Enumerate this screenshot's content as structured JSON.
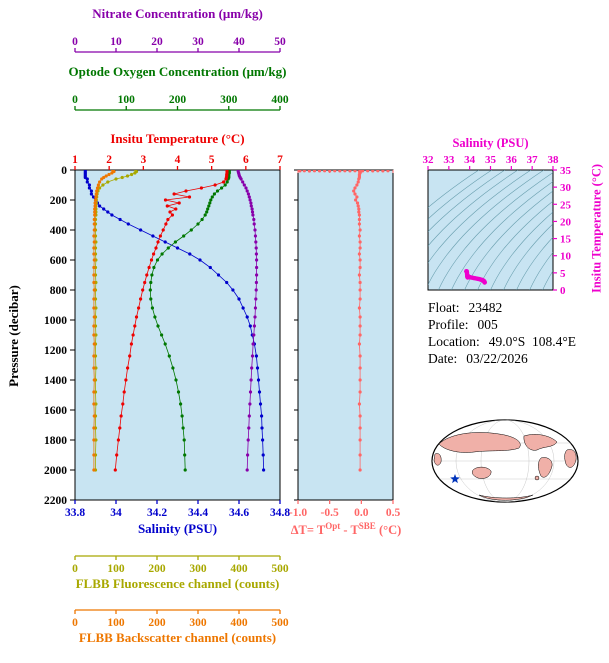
{
  "colors": {
    "plot_bg": "#c8e4f2",
    "contour": "#4a8898",
    "land": "#f0b0a8",
    "ocean": "#ffffff",
    "star": "#0033bb",
    "pressure_axis": "#000000"
  },
  "info": {
    "lines": [
      {
        "label": "Float:",
        "value": "23482"
      },
      {
        "label": "Profile:",
        "value": "005"
      },
      {
        "label": "Location:",
        "value": "49.0°S  108.4°E"
      },
      {
        "label": "Date:",
        "value": "03/22/2026"
      }
    ]
  },
  "chart_data": [
    {
      "type": "line",
      "title": "",
      "y_axis": {
        "label": "Pressure (decibar)",
        "range": [
          0,
          2200
        ],
        "ticks": [
          "0",
          "200",
          "400",
          "600",
          "800",
          "1000",
          "1200",
          "1400",
          "1600",
          "1800",
          "2000",
          "2200"
        ]
      },
      "x_axes": {
        "nitrate": {
          "label": "Nitrate Concentration (μm/kg)",
          "range": [
            0,
            50
          ],
          "ticks": [
            "0",
            "10",
            "20",
            "30",
            "40",
            "50"
          ],
          "color": "#8800aa"
        },
        "oxygen": {
          "label": "Optode Oxygen Concentration (μm/kg)",
          "range": [
            0,
            400
          ],
          "ticks": [
            "0",
            "100",
            "200",
            "300",
            "400"
          ],
          "color": "#007700"
        },
        "temperature": {
          "label": "Insitu Temperature (°C)",
          "range": [
            1,
            7
          ],
          "ticks": [
            "1",
            "2",
            "3",
            "4",
            "5",
            "6",
            "7"
          ],
          "color": "#ee0000"
        },
        "salinity": {
          "label": "Salinity (PSU)",
          "range": [
            33.8,
            34.8
          ],
          "ticks": [
            "33.8",
            "34",
            "34.2",
            "34.4",
            "34.6",
            "34.8"
          ],
          "color": "#0000cc"
        },
        "fluorescence": {
          "label": "FLBB Fluorescence channel (counts)",
          "range": [
            0,
            500
          ],
          "ticks": [
            "0",
            "100",
            "200",
            "300",
            "400",
            "500"
          ],
          "color": "#a8a800"
        },
        "backscatter": {
          "label": "FLBB Backscatter channel (counts)",
          "range": [
            0,
            500
          ],
          "ticks": [
            "0",
            "100",
            "200",
            "300",
            "400",
            "500"
          ],
          "color": "#ee7700"
        }
      },
      "pressure": [
        0,
        10,
        20,
        30,
        40,
        50,
        60,
        80,
        100,
        120,
        140,
        160,
        180,
        200,
        220,
        240,
        260,
        280,
        300,
        330,
        360,
        400,
        440,
        480,
        520,
        560,
        600,
        650,
        700,
        750,
        800,
        860,
        920,
        980,
        1040,
        1100,
        1160,
        1240,
        1320,
        1400,
        1480,
        1560,
        1640,
        1720,
        1800,
        1900,
        2000
      ],
      "series": {
        "temperature": [
          5.45,
          5.45,
          5.45,
          5.44,
          5.44,
          5.43,
          5.42,
          5.35,
          5.1,
          4.7,
          4.25,
          3.9,
          4.35,
          3.65,
          4.05,
          3.7,
          3.95,
          3.78,
          3.85,
          3.72,
          3.66,
          3.58,
          3.5,
          3.43,
          3.37,
          3.3,
          3.24,
          3.17,
          3.1,
          3.04,
          2.98,
          2.92,
          2.86,
          2.8,
          2.75,
          2.7,
          2.65,
          2.6,
          2.54,
          2.49,
          2.44,
          2.4,
          2.35,
          2.31,
          2.27,
          2.22,
          2.18
        ],
        "oxygen": [
          301,
          301,
          301,
          300,
          300,
          300,
          299,
          297,
          293,
          286,
          278,
          272,
          268,
          265,
          263,
          261,
          259,
          257,
          254,
          248,
          240,
          227,
          212,
          196,
          182,
          170,
          161,
          154,
          150,
          148,
          147,
          148,
          151,
          156,
          162,
          169,
          176,
          184,
          191,
          197,
          202,
          206,
          209,
          211,
          213,
          214,
          215
        ],
        "nitrate": [
          39.8,
          39.8,
          39.9,
          40.0,
          40.1,
          40.3,
          40.5,
          40.9,
          41.3,
          41.7,
          42.0,
          42.3,
          42.5,
          42.7,
          42.9,
          43.0,
          43.2,
          43.3,
          43.4,
          43.6,
          43.7,
          43.9,
          44.0,
          44.1,
          44.2,
          44.25,
          44.3,
          44.3,
          44.3,
          44.25,
          44.2,
          44.1,
          44.0,
          43.9,
          43.75,
          43.6,
          43.45,
          43.3,
          43.1,
          42.95,
          42.8,
          42.65,
          42.5,
          42.4,
          42.25,
          42.1,
          42.0
        ],
        "salinity": [
          33.85,
          33.85,
          33.85,
          33.85,
          33.85,
          33.85,
          33.86,
          33.86,
          33.87,
          33.87,
          33.88,
          33.88,
          33.89,
          33.9,
          33.91,
          33.92,
          33.94,
          33.96,
          33.98,
          34.02,
          34.06,
          34.12,
          34.18,
          34.24,
          34.3,
          34.36,
          34.41,
          34.46,
          34.5,
          34.54,
          34.57,
          34.6,
          34.62,
          34.64,
          34.655,
          34.665,
          34.675,
          34.685,
          34.69,
          34.695,
          34.7,
          34.705,
          34.71,
          34.712,
          34.715,
          34.718,
          34.72
        ],
        "fluorescence": [
          148,
          150,
          146,
          138,
          128,
          115,
          100,
          80,
          68,
          60,
          56,
          54,
          53,
          52,
          52,
          51,
          51,
          51,
          51,
          50,
          50,
          50,
          50,
          51,
          50,
          50,
          51,
          50,
          50,
          51,
          50,
          50,
          51,
          50,
          50,
          51,
          50,
          50,
          51,
          50,
          50,
          51,
          50,
          50,
          51,
          50,
          50
        ],
        "backscatter": [
          92,
          95,
          90,
          83,
          76,
          70,
          65,
          60,
          57,
          55,
          53,
          52,
          51,
          50,
          49,
          49,
          48,
          48,
          48,
          47,
          47,
          47,
          46,
          47,
          46,
          46,
          47,
          46,
          46,
          46,
          47,
          46,
          46,
          47,
          46,
          46,
          47,
          46,
          46,
          47,
          46,
          46,
          47,
          46,
          46,
          46,
          46
        ]
      }
    },
    {
      "type": "line",
      "x_axis": {
        "label_parts": [
          "ΔT= T",
          "Opt",
          " - T",
          "SBE",
          " (°C)"
        ],
        "range": [
          -1,
          0.5
        ],
        "ticks": [
          "-1.0",
          "-0.5",
          "0.0",
          "0.5"
        ],
        "color": "#ff6666"
      },
      "values": [
        -0.02,
        -0.03,
        -0.02,
        -0.03,
        -0.03,
        -0.03,
        -0.04,
        -0.05,
        -0.07,
        -0.1,
        -0.12,
        -0.1,
        -0.07,
        -0.09,
        -0.06,
        -0.05,
        -0.04,
        -0.04,
        -0.03,
        -0.03,
        -0.03,
        -0.02,
        -0.03,
        -0.02,
        -0.02,
        -0.03,
        -0.02,
        -0.02,
        -0.03,
        -0.02,
        -0.02,
        -0.02,
        -0.03,
        -0.02,
        -0.02,
        -0.02,
        -0.03,
        -0.02,
        -0.02,
        -0.02,
        -0.02,
        -0.03,
        -0.02,
        -0.02,
        -0.02,
        -0.02,
        -0.02
      ],
      "surface_scatter": [
        [
          -0.97,
          6
        ],
        [
          -0.9,
          5
        ],
        [
          -0.82,
          7
        ],
        [
          -0.74,
          5
        ],
        [
          -0.66,
          6
        ],
        [
          -0.58,
          5
        ],
        [
          -0.5,
          7
        ],
        [
          -0.42,
          5
        ],
        [
          -0.34,
          6
        ],
        [
          -0.26,
          5
        ],
        [
          -0.18,
          6
        ],
        [
          -0.1,
          5
        ],
        [
          0.02,
          6
        ],
        [
          0.1,
          5
        ],
        [
          0.18,
          6
        ],
        [
          0.26,
          5
        ],
        [
          0.34,
          6
        ],
        [
          0.42,
          5
        ]
      ]
    },
    {
      "type": "scatter",
      "x_axis": {
        "label": "Salinity (PSU)",
        "range": [
          32,
          38
        ],
        "ticks": [
          "32",
          "33",
          "34",
          "35",
          "36",
          "37",
          "38"
        ],
        "color": "#ee00cc"
      },
      "y_axis": {
        "label": "Insitu Temperature (°C)",
        "range": [
          0,
          35
        ],
        "ticks": [
          "0",
          "5",
          "10",
          "15",
          "20",
          "25",
          "30",
          "35"
        ],
        "color": "#ee00cc"
      },
      "isopycnals": [
        22,
        22.5,
        23,
        23.5,
        24,
        24.5,
        25,
        25.5,
        26,
        26.5,
        27,
        27.5,
        28,
        28.5,
        29
      ]
    }
  ]
}
